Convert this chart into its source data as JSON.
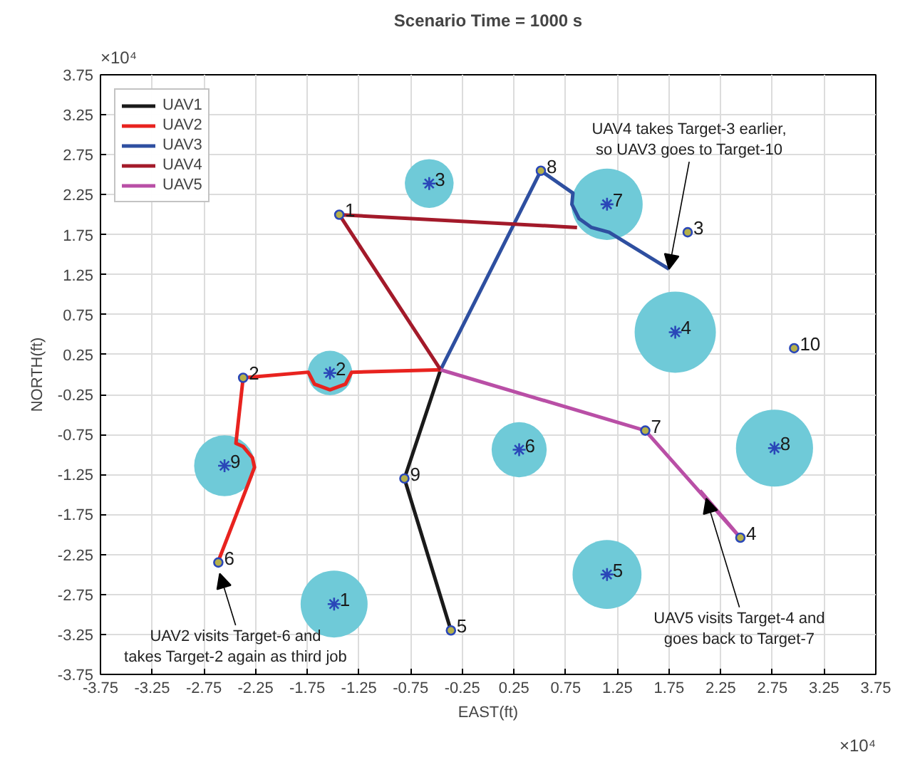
{
  "chart_data": {
    "type": "line",
    "title": "Scenario Time = 1000 s",
    "xlabel": "EAST(ft)",
    "ylabel": "NORTH(ft)",
    "xlim": [
      -3.75,
      3.75
    ],
    "ylim": [
      -3.75,
      3.75
    ],
    "xticks": [
      -3.75,
      -3.25,
      -2.75,
      -2.25,
      -1.75,
      -1.25,
      -0.75,
      -0.25,
      0.25,
      0.75,
      1.25,
      1.75,
      2.25,
      2.75,
      3.25,
      3.75
    ],
    "yticks": [
      -3.75,
      -3.25,
      -2.75,
      -2.25,
      -1.75,
      -1.25,
      -0.75,
      -0.25,
      0.25,
      0.75,
      1.25,
      1.75,
      2.25,
      2.75,
      3.25,
      3.75
    ],
    "grid": true,
    "legend": "top left",
    "line_style": "solid",
    "series": [
      {
        "type": "bubble",
        "color": "#6fcad8",
        "x": [
          -1.49,
          -1.53,
          -0.57,
          1.81,
          1.15,
          0.3,
          1.15,
          2.77,
          -2.55
        ],
        "values": [
          -2.87,
          0.02,
          2.39,
          0.53,
          -2.5,
          -0.94,
          2.13,
          -0.92,
          -1.14
        ],
        "sizes": [
          0.68,
          0.3,
          0.36,
          1,
          0.72,
          0.46,
          0.77,
          0.9,
          0.56
        ]
      },
      {
        "name": "UAV1",
        "color": "#1a1a1a",
        "x": [
          -0.46,
          -0.81,
          -0.36
        ],
        "values": [
          0.06,
          -1.3,
          -3.2
        ]
      },
      {
        "name": "UAV2",
        "color": "#e8231f",
        "x": [
          -0.46,
          -1.32,
          -1.38,
          -1.53,
          -1.68,
          -1.74,
          -2.37,
          -2.44,
          -2.37,
          -2.28,
          -2.26,
          -2.31,
          -2.6
        ],
        "values": [
          0.06,
          0.03,
          -0.12,
          -0.19,
          -0.12,
          0.03,
          -0.04,
          -0.86,
          -0.9,
          -1.04,
          -1.16,
          -1.33,
          -2.3
        ]
      },
      {
        "name": "UAV3",
        "color": "#2e4fa0",
        "x": [
          -0.46,
          0.51,
          0.82,
          0.81,
          0.88,
          1.0,
          1.17,
          1.75
        ],
        "values": [
          0.06,
          2.55,
          2.27,
          2.13,
          1.95,
          1.84,
          1.78,
          1.32
        ]
      },
      {
        "name": "UAV4",
        "color": "#a31a2a",
        "x": [
          -0.46,
          -1.44,
          0.86
        ],
        "values": [
          0.06,
          2.0,
          1.84
        ]
      },
      {
        "name": "UAV5",
        "color": "#b94fa6",
        "x": [
          -0.46,
          1.52,
          2.44,
          2.05
        ],
        "values": [
          0.06,
          -0.7,
          -2.04,
          -1.45
        ]
      },
      {
        "type": "scatter",
        "color": "#2a47b8",
        "marker": "cross",
        "x": [
          -1.49,
          -1.53,
          -0.57,
          1.81,
          1.15,
          0.3,
          1.15,
          2.77,
          -2.55
        ],
        "values": [
          -2.87,
          0.02,
          2.39,
          0.53,
          -2.5,
          -0.94,
          2.13,
          -0.92,
          -1.14
        ]
      },
      {
        "type": "scatter",
        "color": "#b5b04a",
        "marker": "circle",
        "x": [
          -1.44,
          -2.37,
          1.93,
          2.44,
          -0.36,
          -2.61,
          1.52,
          0.51,
          -0.81,
          2.96
        ],
        "values": [
          2.0,
          -0.04,
          1.78,
          -2.04,
          -3.2,
          -2.35,
          -0.7,
          2.55,
          -1.3,
          0.33
        ]
      }
    ],
    "annotations": [
      "×10⁴",
      "×10⁴",
      {
        "text": "1",
        "x": -1.49,
        "y": -2.87
      },
      {
        "text": "2",
        "x": -1.53,
        "y": 0.02
      },
      {
        "text": "3",
        "x": -0.57,
        "y": 2.39
      },
      {
        "text": "4",
        "x": 1.81,
        "y": 0.53
      },
      {
        "text": "5",
        "x": 1.15,
        "y": -2.5
      },
      {
        "text": "6",
        "x": 0.3,
        "y": -0.94
      },
      {
        "text": "7",
        "x": 1.15,
        "y": 2.13
      },
      {
        "text": "8",
        "x": 2.77,
        "y": -0.92
      },
      {
        "text": "9",
        "x": -2.55,
        "y": -1.14
      },
      {
        "text": "1",
        "x": -1.44,
        "y": 2.0
      },
      {
        "text": "2",
        "x": -2.37,
        "y": -0.04
      },
      {
        "text": "3",
        "x": 1.93,
        "y": 1.78
      },
      {
        "text": "4",
        "x": 2.44,
        "y": -2.04
      },
      {
        "text": "5",
        "x": -0.36,
        "y": -3.2
      },
      {
        "text": "6",
        "x": -2.61,
        "y": -2.35
      },
      {
        "text": "7",
        "x": 1.52,
        "y": -0.7
      },
      {
        "text": "8",
        "x": 0.51,
        "y": 2.55
      },
      {
        "text": "9",
        "x": -0.81,
        "y": -1.3
      },
      {
        "text": "10",
        "x": 2.96,
        "y": 0.33
      },
      {
        "text": "UAV4 takes Target-3 earlier,\nso UAV3 goes to Target-10",
        "x": 1.75,
        "y": 1.32
      },
      {
        "text": "UAV2 visits Target-6 and\ntakes Target-2 again as third job",
        "x": -2.61,
        "y": -2.35
      },
      {
        "text": "UAV5 visits Target-4 and\ngoes back to Target-7",
        "x": 2.11,
        "y": -1.55
      }
    ]
  }
}
